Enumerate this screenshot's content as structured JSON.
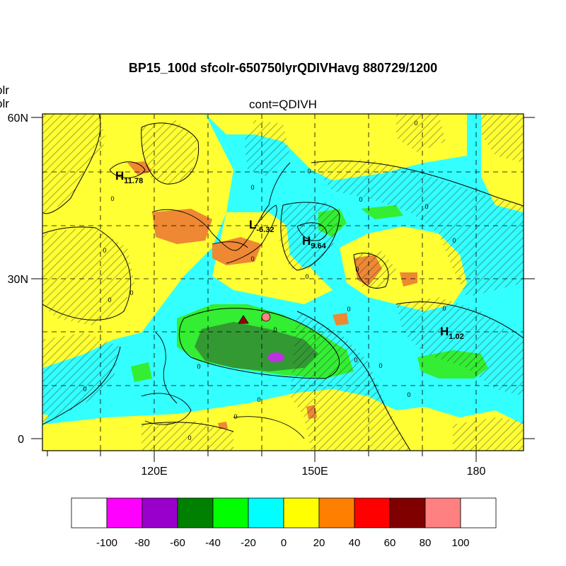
{
  "title": "BP15_100d sfcolr-650750lyrQDIVHavg  880729/1200",
  "subtitle": "cont=QDIVH",
  "left_clipped_labels": [
    "olr",
    "olr"
  ],
  "axes": {
    "y_ticks": [
      "60N",
      "30N",
      "0"
    ],
    "x_ticks": [
      "120E",
      "150E",
      "180"
    ]
  },
  "extrema": [
    {
      "letter": "H",
      "value": "11.78"
    },
    {
      "letter": "L",
      "value": "-6.32"
    },
    {
      "letter": "H",
      "value": "9.64"
    },
    {
      "letter": "H",
      "value": "1.02"
    }
  ],
  "contour_label": "0",
  "colorbar": {
    "labels": [
      "-100",
      "-80",
      "-60",
      "-40",
      "-20",
      "0",
      "20",
      "40",
      "60",
      "80",
      "100"
    ],
    "colors": [
      "#ffffff",
      "#ff00ff",
      "#9900cc",
      "#008000",
      "#00ff00",
      "#00ffff",
      "#ffff00",
      "#ff8000",
      "#ff0000",
      "#800000",
      "#ff8080",
      "#ffffff"
    ]
  },
  "palette": {
    "cyan": "#33ffff",
    "yellow": "#ffff33",
    "green": "#33ee33",
    "darkgreen": "#339933",
    "orange": "#ee8833",
    "purple": "#bb33dd"
  },
  "markers": [
    {
      "type": "triangle",
      "color": "#990000"
    },
    {
      "type": "circle",
      "color": "#ff8080"
    }
  ]
}
